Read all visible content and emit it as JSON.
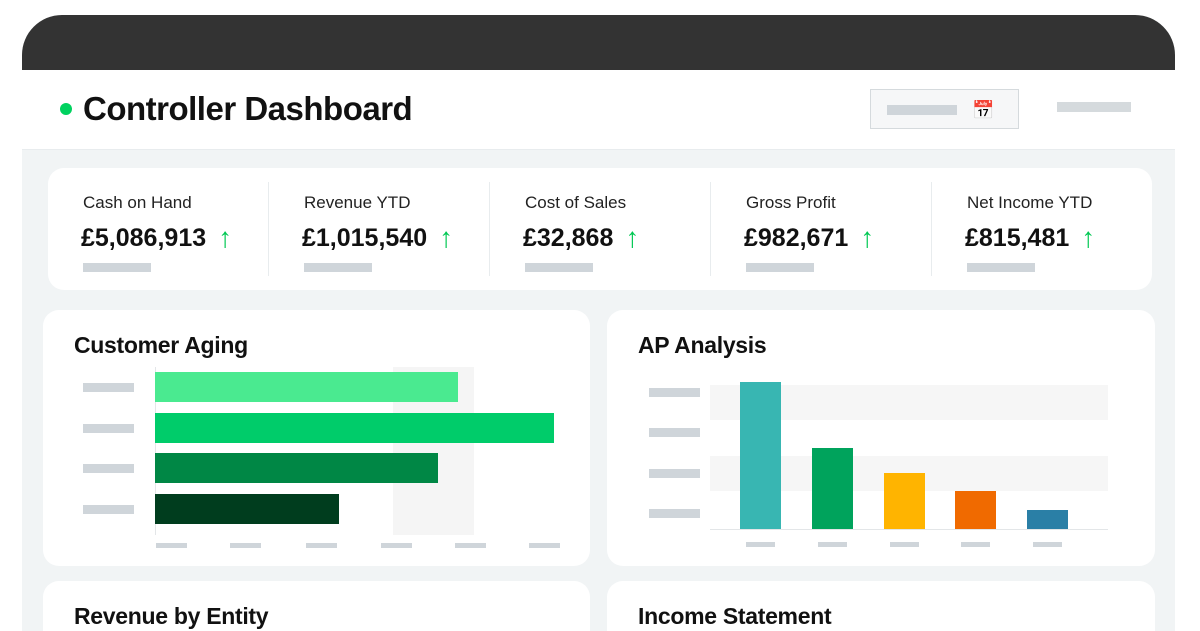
{
  "header": {
    "title": "Controller Dashboard",
    "status_color": "#00d25f",
    "date_picker_icon": "calendar-icon"
  },
  "kpis": [
    {
      "label": "Cash on Hand",
      "value": "£5,086,913",
      "trend": "up"
    },
    {
      "label": "Revenue YTD",
      "value": "£1,015,540",
      "trend": "up"
    },
    {
      "label": "Cost of Sales",
      "value": "£32,868",
      "trend": "up"
    },
    {
      "label": "Gross Profit",
      "value": "£982,671",
      "trend": "up"
    },
    {
      "label": "Net Income YTD",
      "value": "£815,481",
      "trend": "up"
    }
  ],
  "trend_arrow": "↑",
  "cards": {
    "customer_aging": {
      "title": "Customer Aging"
    },
    "ap_analysis": {
      "title": "AP Analysis"
    },
    "revenue_by_entity": {
      "title": "Revenue by Entity"
    },
    "income_statement": {
      "title": "Income Statement"
    }
  },
  "chart_data": [
    {
      "type": "bar",
      "orientation": "horizontal",
      "title": "Customer Aging",
      "values": [
        76,
        100,
        71,
        46
      ],
      "colors": [
        "#4aea90",
        "#00cc6a",
        "#008745",
        "#003d1e"
      ]
    },
    {
      "type": "bar",
      "orientation": "vertical",
      "title": "AP Analysis",
      "values": [
        100,
        55,
        38,
        26,
        13
      ],
      "colors": [
        "#38b6b2",
        "#00a35c",
        "#ffb400",
        "#f06a00",
        "#2a7fa6"
      ]
    }
  ]
}
